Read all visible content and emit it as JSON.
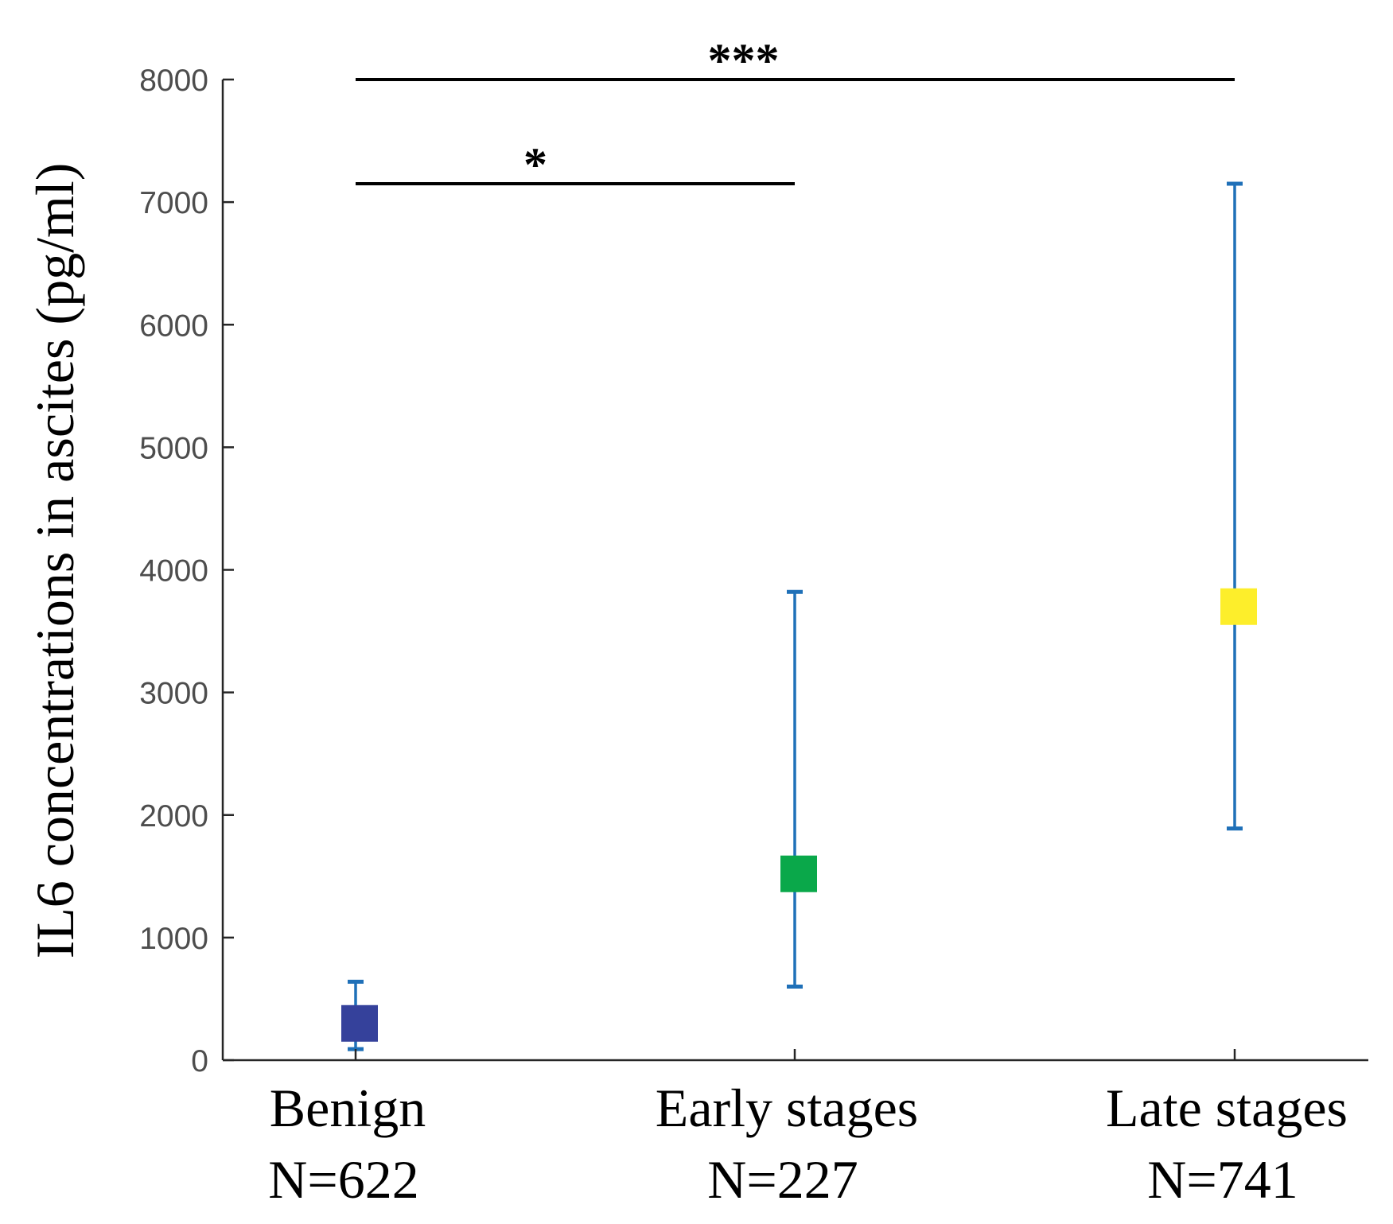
{
  "chart_data": {
    "type": "scatter",
    "title": "",
    "xlabel": "",
    "ylabel": "IL6 concentrations in ascites (pg/ml)",
    "ylim": [
      0,
      8000
    ],
    "yticks": [
      0,
      1000,
      2000,
      3000,
      4000,
      5000,
      6000,
      7000,
      8000
    ],
    "grid": false,
    "categories": [
      {
        "name": "Benign",
        "n_label": "N=622"
      },
      {
        "name": "Early stages",
        "n_label": "N=227"
      },
      {
        "name": "Late stages",
        "n_label": "N=741"
      }
    ],
    "points": [
      {
        "category": "Benign",
        "value": 300,
        "lower": 90,
        "upper": 640,
        "color": "#35419b"
      },
      {
        "category": "Early stages",
        "value": 1520,
        "lower": 600,
        "upper": 3820,
        "color": "#0aa84a"
      },
      {
        "category": "Late stages",
        "value": 3700,
        "lower": 1890,
        "upper": 7150,
        "color": "#fdee2b"
      }
    ],
    "errorbar_color": "#1f70b8",
    "significance": [
      {
        "from": "Benign",
        "to": "Early stages",
        "y": 7150,
        "label": "*"
      },
      {
        "from": "Benign",
        "to": "Late stages",
        "y": 8000,
        "label": "***"
      }
    ]
  }
}
